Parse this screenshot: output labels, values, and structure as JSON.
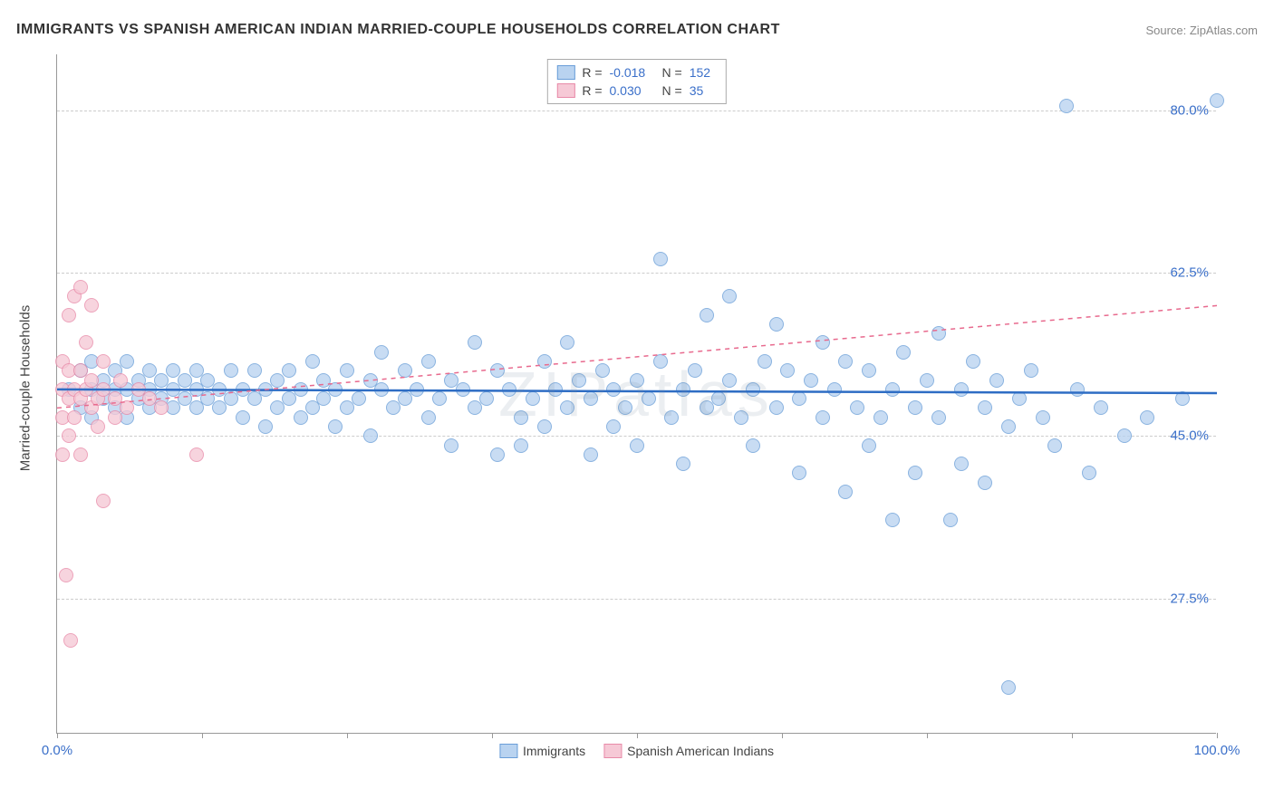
{
  "title": "IMMIGRANTS VS SPANISH AMERICAN INDIAN MARRIED-COUPLE HOUSEHOLDS CORRELATION CHART",
  "source_label": "Source: ZipAtlas.com",
  "watermark": "ZIPatlas",
  "y_axis_label": "Married-couple Households",
  "chart": {
    "type": "scatter",
    "xlim": [
      0,
      100
    ],
    "ylim": [
      13,
      86
    ],
    "x_ticks": [
      0,
      12.5,
      25,
      37.5,
      50,
      62.5,
      75,
      87.5,
      100
    ],
    "x_tick_labels": {
      "0": "0.0%",
      "100": "100.0%"
    },
    "y_gridlines": [
      27.5,
      45.0,
      62.5,
      80.0
    ],
    "y_tick_labels": [
      "27.5%",
      "45.0%",
      "62.5%",
      "80.0%"
    ],
    "background_color": "#ffffff",
    "grid_color": "#cccccc",
    "series": [
      {
        "name": "Immigrants",
        "marker_fill": "#b9d3f0",
        "marker_stroke": "#6a9ed8",
        "marker_size": 16,
        "trend_color": "#2e6dc4",
        "trend_dash": "none",
        "trend_width": 2.5,
        "trend_y_start": 50.0,
        "trend_y_end": 49.6,
        "R": "-0.018",
        "N": "152",
        "points": [
          [
            1,
            50
          ],
          [
            2,
            48
          ],
          [
            2,
            52
          ],
          [
            3,
            47
          ],
          [
            3,
            50
          ],
          [
            3,
            53
          ],
          [
            4,
            49
          ],
          [
            4,
            51
          ],
          [
            5,
            48
          ],
          [
            5,
            50
          ],
          [
            5,
            52
          ],
          [
            6,
            47
          ],
          [
            6,
            50
          ],
          [
            6,
            53
          ],
          [
            7,
            49
          ],
          [
            7,
            51
          ],
          [
            8,
            48
          ],
          [
            8,
            50
          ],
          [
            8,
            52
          ],
          [
            9,
            49
          ],
          [
            9,
            51
          ],
          [
            10,
            48
          ],
          [
            10,
            50
          ],
          [
            10,
            52
          ],
          [
            11,
            49
          ],
          [
            11,
            51
          ],
          [
            12,
            48
          ],
          [
            12,
            50
          ],
          [
            12,
            52
          ],
          [
            13,
            49
          ],
          [
            13,
            51
          ],
          [
            14,
            50
          ],
          [
            14,
            48
          ],
          [
            15,
            49
          ],
          [
            15,
            52
          ],
          [
            16,
            50
          ],
          [
            16,
            47
          ],
          [
            17,
            49
          ],
          [
            17,
            52
          ],
          [
            18,
            50
          ],
          [
            18,
            46
          ],
          [
            19,
            48
          ],
          [
            19,
            51
          ],
          [
            20,
            49
          ],
          [
            20,
            52
          ],
          [
            21,
            50
          ],
          [
            21,
            47
          ],
          [
            22,
            48
          ],
          [
            22,
            53
          ],
          [
            23,
            49
          ],
          [
            23,
            51
          ],
          [
            24,
            50
          ],
          [
            24,
            46
          ],
          [
            25,
            48
          ],
          [
            25,
            52
          ],
          [
            26,
            49
          ],
          [
            27,
            51
          ],
          [
            27,
            45
          ],
          [
            28,
            50
          ],
          [
            28,
            54
          ],
          [
            29,
            48
          ],
          [
            30,
            49
          ],
          [
            30,
            52
          ],
          [
            31,
            50
          ],
          [
            32,
            47
          ],
          [
            32,
            53
          ],
          [
            33,
            49
          ],
          [
            34,
            51
          ],
          [
            34,
            44
          ],
          [
            35,
            50
          ],
          [
            36,
            48
          ],
          [
            36,
            55
          ],
          [
            37,
            49
          ],
          [
            38,
            52
          ],
          [
            38,
            43
          ],
          [
            39,
            50
          ],
          [
            40,
            47
          ],
          [
            40,
            44
          ],
          [
            41,
            49
          ],
          [
            42,
            53
          ],
          [
            42,
            46
          ],
          [
            43,
            50
          ],
          [
            44,
            48
          ],
          [
            44,
            55
          ],
          [
            45,
            51
          ],
          [
            46,
            49
          ],
          [
            46,
            43
          ],
          [
            47,
            52
          ],
          [
            48,
            50
          ],
          [
            48,
            46
          ],
          [
            49,
            48
          ],
          [
            50,
            51
          ],
          [
            50,
            44
          ],
          [
            51,
            49
          ],
          [
            52,
            53
          ],
          [
            52,
            64
          ],
          [
            53,
            47
          ],
          [
            54,
            50
          ],
          [
            54,
            42
          ],
          [
            55,
            52
          ],
          [
            56,
            48
          ],
          [
            56,
            58
          ],
          [
            57,
            49
          ],
          [
            58,
            51
          ],
          [
            58,
            60
          ],
          [
            59,
            47
          ],
          [
            60,
            50
          ],
          [
            60,
            44
          ],
          [
            61,
            53
          ],
          [
            62,
            48
          ],
          [
            62,
            57
          ],
          [
            63,
            52
          ],
          [
            64,
            49
          ],
          [
            64,
            41
          ],
          [
            65,
            51
          ],
          [
            66,
            47
          ],
          [
            66,
            55
          ],
          [
            67,
            50
          ],
          [
            68,
            53
          ],
          [
            68,
            39
          ],
          [
            69,
            48
          ],
          [
            70,
            52
          ],
          [
            70,
            44
          ],
          [
            71,
            47
          ],
          [
            72,
            50
          ],
          [
            72,
            36
          ],
          [
            73,
            54
          ],
          [
            74,
            48
          ],
          [
            74,
            41
          ],
          [
            75,
            51
          ],
          [
            76,
            47
          ],
          [
            76,
            56
          ],
          [
            77,
            36
          ],
          [
            78,
            50
          ],
          [
            78,
            42
          ],
          [
            79,
            53
          ],
          [
            80,
            48
          ],
          [
            80,
            40
          ],
          [
            81,
            51
          ],
          [
            82,
            46
          ],
          [
            82,
            18
          ],
          [
            83,
            49
          ],
          [
            84,
            52
          ],
          [
            85,
            47
          ],
          [
            86,
            44
          ],
          [
            87,
            80.5
          ],
          [
            88,
            50
          ],
          [
            89,
            41
          ],
          [
            90,
            48
          ],
          [
            92,
            45
          ],
          [
            94,
            47
          ],
          [
            97,
            49
          ],
          [
            100,
            81
          ]
        ]
      },
      {
        "name": "Spanish American Indians",
        "marker_fill": "#f6c9d6",
        "marker_stroke": "#e88aa8",
        "marker_size": 16,
        "trend_color": "#e86a8e",
        "trend_dash": "5,5",
        "trend_width": 1.5,
        "trend_y_start": 48.0,
        "trend_y_end": 59.0,
        "R": "0.030",
        "N": "35",
        "points": [
          [
            0.5,
            50
          ],
          [
            0.5,
            47
          ],
          [
            0.5,
            43
          ],
          [
            0.5,
            53
          ],
          [
            1,
            49
          ],
          [
            1,
            52
          ],
          [
            1,
            45
          ],
          [
            1,
            58
          ],
          [
            1.5,
            50
          ],
          [
            1.5,
            47
          ],
          [
            1.5,
            60
          ],
          [
            2,
            49
          ],
          [
            2,
            52
          ],
          [
            2,
            43
          ],
          [
            2,
            61
          ],
          [
            2.5,
            50
          ],
          [
            2.5,
            55
          ],
          [
            3,
            48
          ],
          [
            3,
            51
          ],
          [
            3,
            59
          ],
          [
            3.5,
            49
          ],
          [
            3.5,
            46
          ],
          [
            4,
            50
          ],
          [
            4,
            53
          ],
          [
            4,
            38
          ],
          [
            5,
            49
          ],
          [
            5,
            47
          ],
          [
            5.5,
            51
          ],
          [
            6,
            48
          ],
          [
            7,
            50
          ],
          [
            8,
            49
          ],
          [
            9,
            48
          ],
          [
            12,
            43
          ],
          [
            0.8,
            30
          ],
          [
            1.2,
            23
          ]
        ]
      }
    ]
  },
  "legend_bottom": [
    {
      "label": "Immigrants",
      "fill": "#b9d3f0",
      "stroke": "#6a9ed8"
    },
    {
      "label": "Spanish American Indians",
      "fill": "#f6c9d6",
      "stroke": "#e88aa8"
    }
  ]
}
